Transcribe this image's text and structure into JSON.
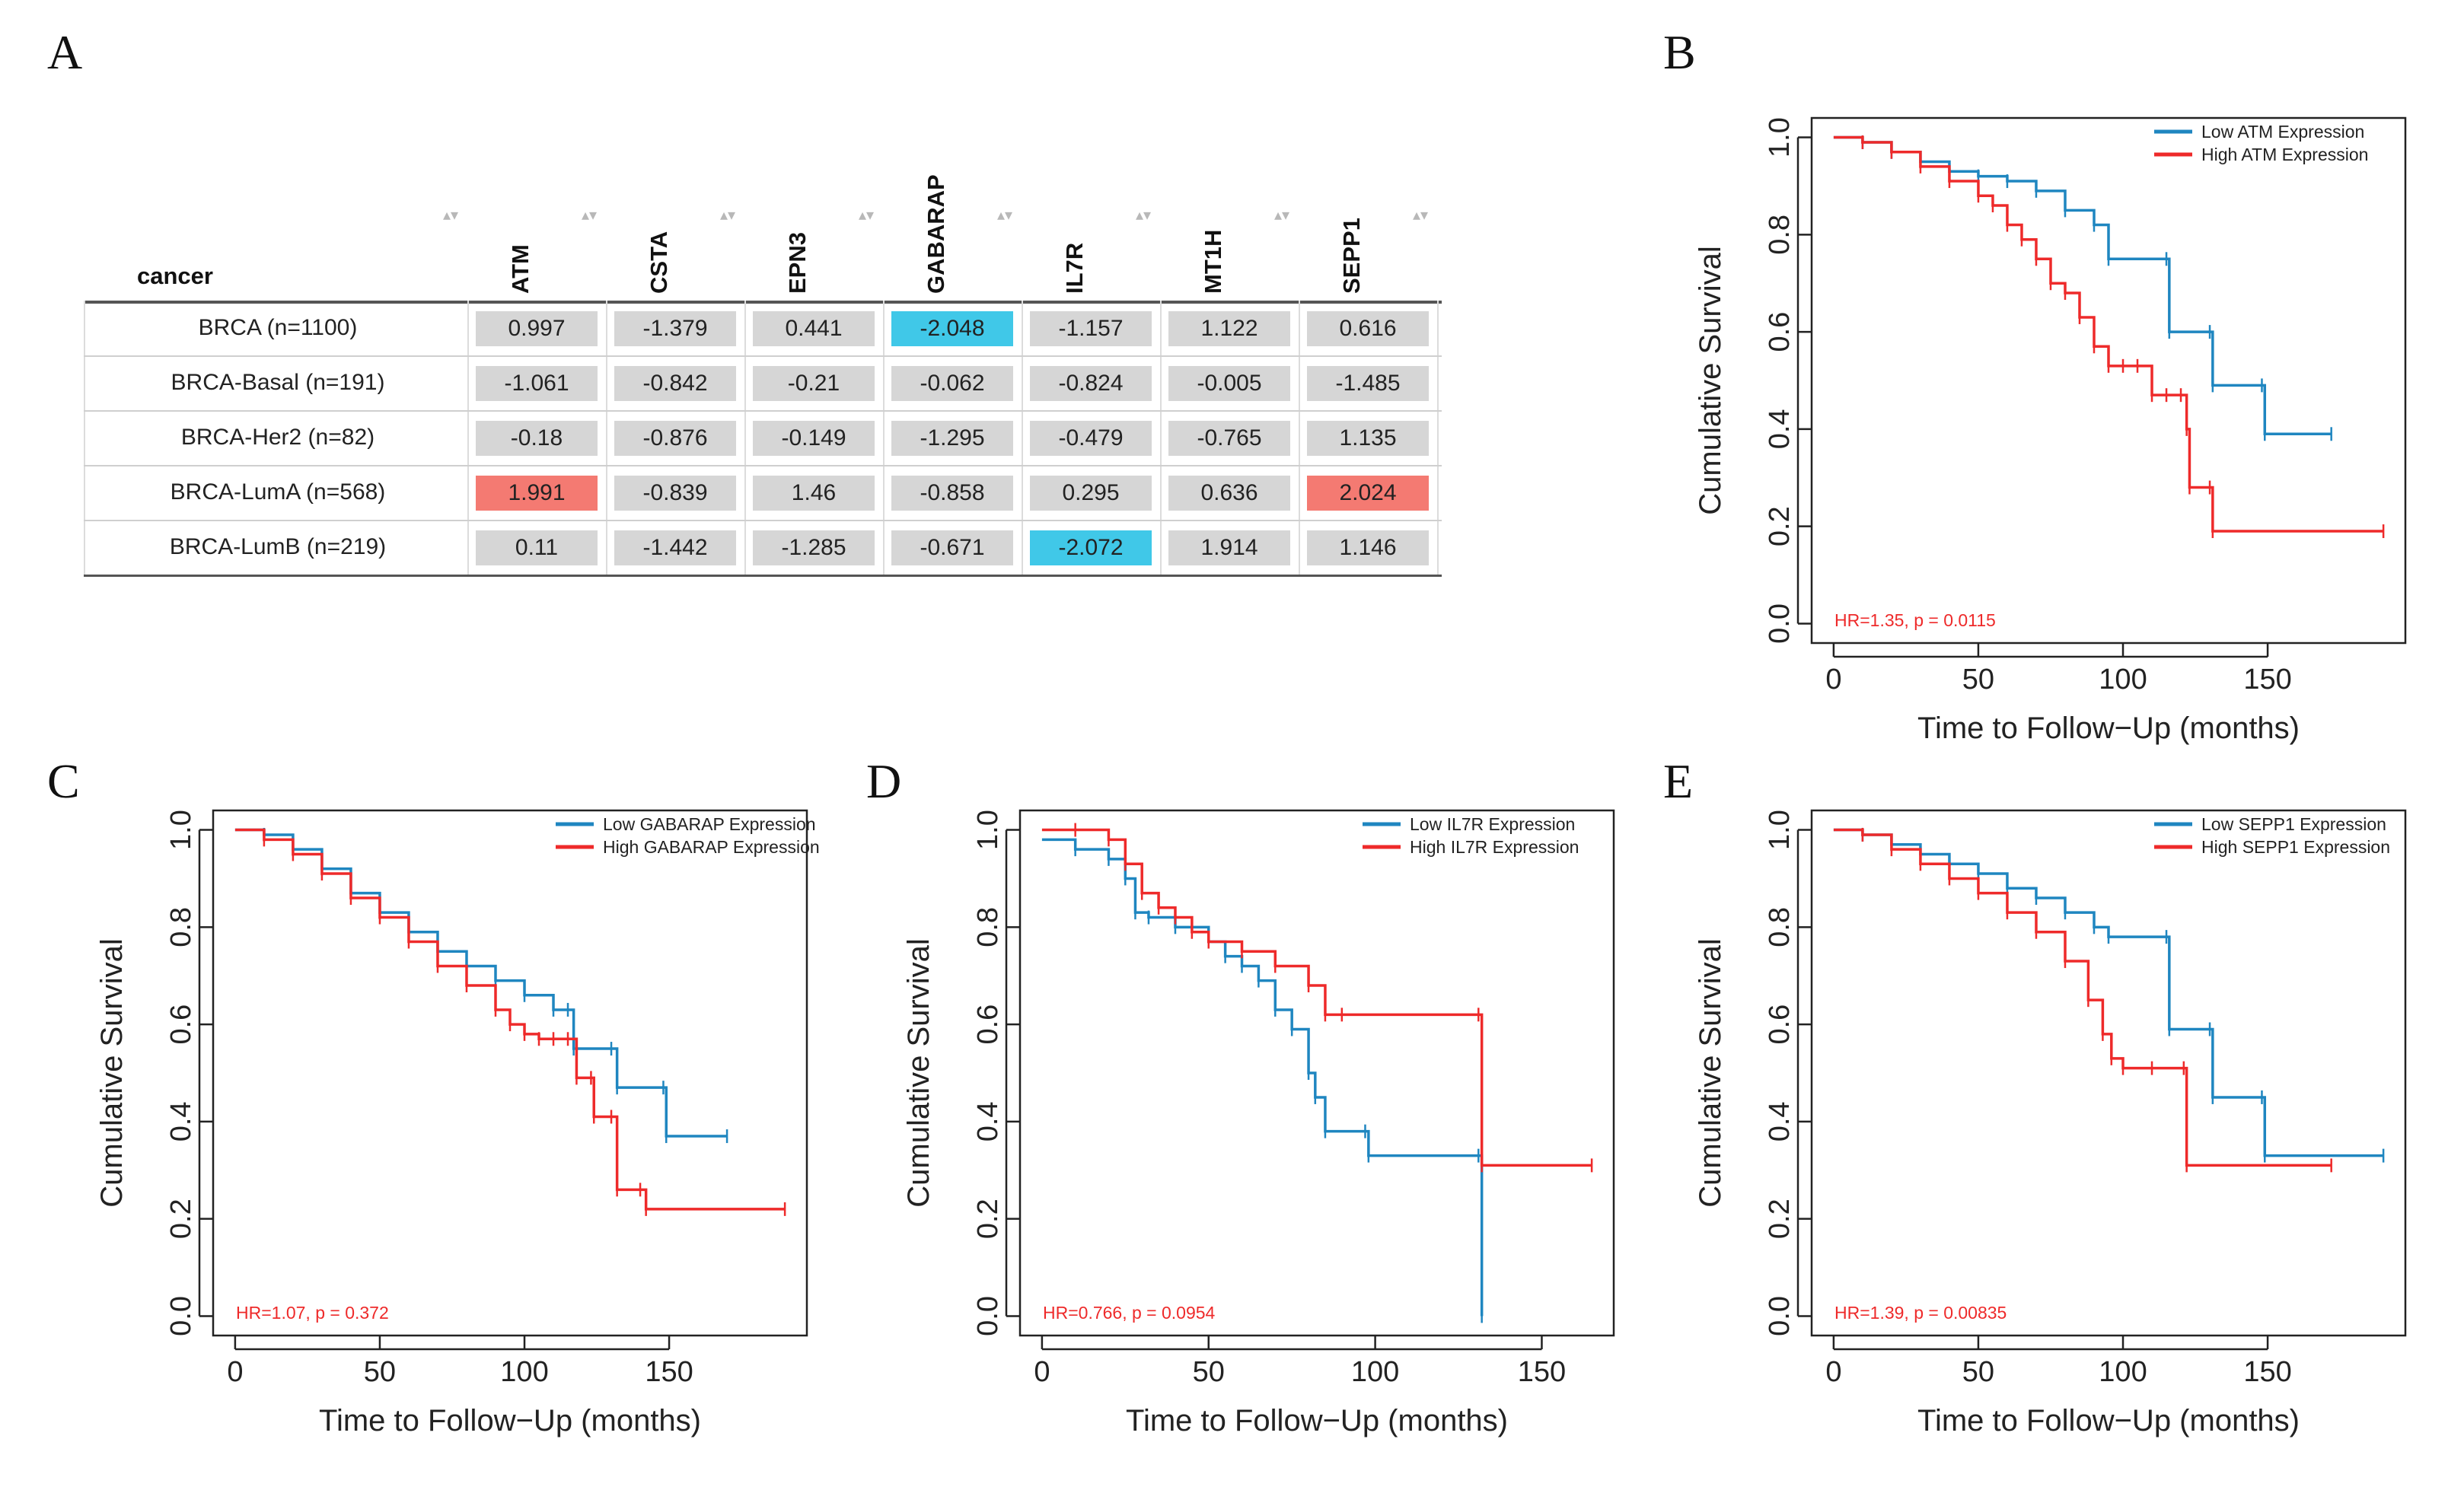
{
  "panel_labels": [
    "A",
    "B",
    "C",
    "D",
    "E"
  ],
  "chart_data": [
    {
      "type": "table",
      "panel": "A",
      "corner_header": "cancer",
      "columns": [
        "ATM",
        "CSTA",
        "EPN3",
        "GABARAP",
        "IL7R",
        "MT1H",
        "SEPP1"
      ],
      "rows": [
        {
          "label": "BRCA (n=1100)",
          "values": [
            "0.997",
            "-1.379",
            "0.441",
            "-2.048",
            "-1.157",
            "1.122",
            "0.616"
          ]
        },
        {
          "label": "BRCA-Basal (n=191)",
          "values": [
            "-1.061",
            "-0.842",
            "-0.21",
            "-0.062",
            "-0.824",
            "-0.005",
            "-1.485"
          ]
        },
        {
          "label": "BRCA-Her2 (n=82)",
          "values": [
            "-0.18",
            "-0.876",
            "-0.149",
            "-1.295",
            "-0.479",
            "-0.765",
            "1.135"
          ]
        },
        {
          "label": "BRCA-LumA (n=568)",
          "values": [
            "1.991",
            "-0.839",
            "1.46",
            "-0.858",
            "0.295",
            "0.636",
            "2.024"
          ]
        },
        {
          "label": "BRCA-LumB (n=219)",
          "values": [
            "0.11",
            "-1.442",
            "-1.285",
            "-0.671",
            "-2.072",
            "1.914",
            "1.146"
          ]
        }
      ],
      "colors": {
        "high": "#f47a72",
        "low": "#40c8e8",
        "neutral": "#d6d6d6"
      },
      "high_threshold": 1.96,
      "low_threshold": -1.96
    },
    {
      "type": "line",
      "panel": "B",
      "xlabel": "Time to Follow−Up (months)",
      "ylabel": "Cumulative Survival",
      "xlim": [
        0,
        190
      ],
      "ylim": [
        0,
        1
      ],
      "xticks": [
        "0",
        "50",
        "100",
        "150"
      ],
      "yticks": [
        "0.0",
        "0.2",
        "0.4",
        "0.6",
        "0.8",
        "1.0"
      ],
      "annotation": "HR=1.35, p = 0.0115",
      "series": [
        {
          "name": "Low ATM Expression",
          "color": "#1f86c0",
          "x": [
            0,
            10,
            20,
            30,
            40,
            50,
            60,
            70,
            80,
            90,
            95,
            115,
            116,
            130,
            131,
            148,
            149,
            172
          ],
          "y": [
            1,
            0.99,
            0.97,
            0.95,
            0.93,
            0.92,
            0.91,
            0.89,
            0.85,
            0.82,
            0.75,
            0.75,
            0.6,
            0.6,
            0.49,
            0.49,
            0.39,
            0.39
          ]
        },
        {
          "name": "High ATM Expression",
          "color": "#ee2a2a",
          "x": [
            0,
            10,
            20,
            30,
            40,
            50,
            55,
            60,
            65,
            70,
            75,
            80,
            85,
            90,
            95,
            100,
            105,
            110,
            115,
            120,
            122,
            123,
            130,
            131,
            190
          ],
          "y": [
            1,
            0.99,
            0.97,
            0.94,
            0.91,
            0.88,
            0.86,
            0.82,
            0.79,
            0.75,
            0.7,
            0.68,
            0.63,
            0.57,
            0.53,
            0.53,
            0.53,
            0.47,
            0.47,
            0.47,
            0.4,
            0.28,
            0.28,
            0.19,
            0.19
          ]
        }
      ]
    },
    {
      "type": "line",
      "panel": "C",
      "xlabel": "Time to Follow−Up (months)",
      "ylabel": "Cumulative Survival",
      "xlim": [
        0,
        190
      ],
      "ylim": [
        0,
        1
      ],
      "xticks": [
        "0",
        "50",
        "100",
        "150"
      ],
      "yticks": [
        "0.0",
        "0.2",
        "0.4",
        "0.6",
        "0.8",
        "1.0"
      ],
      "annotation": "HR=1.07, p = 0.372",
      "series": [
        {
          "name": "Low GABARAP Expression",
          "color": "#1f86c0",
          "x": [
            0,
            10,
            20,
            30,
            40,
            50,
            60,
            70,
            80,
            90,
            100,
            110,
            115,
            117,
            130,
            132,
            148,
            149,
            170
          ],
          "y": [
            1,
            0.99,
            0.96,
            0.92,
            0.87,
            0.83,
            0.79,
            0.75,
            0.72,
            0.69,
            0.66,
            0.63,
            0.63,
            0.55,
            0.55,
            0.47,
            0.47,
            0.37,
            0.37
          ]
        },
        {
          "name": "High GABARAP Expression",
          "color": "#ee2a2a",
          "x": [
            0,
            10,
            20,
            30,
            40,
            50,
            60,
            70,
            80,
            90,
            95,
            100,
            105,
            110,
            115,
            118,
            123,
            124,
            130,
            132,
            140,
            142,
            190
          ],
          "y": [
            1,
            0.98,
            0.95,
            0.91,
            0.86,
            0.82,
            0.77,
            0.72,
            0.68,
            0.63,
            0.6,
            0.58,
            0.57,
            0.57,
            0.57,
            0.49,
            0.49,
            0.41,
            0.41,
            0.26,
            0.26,
            0.22,
            0.22
          ]
        }
      ]
    },
    {
      "type": "line",
      "panel": "D",
      "xlabel": "Time to Follow−Up (months)",
      "ylabel": "Cumulative Survival",
      "xlim": [
        0,
        165
      ],
      "ylim": [
        0,
        1
      ],
      "xticks": [
        "0",
        "50",
        "100",
        "150"
      ],
      "yticks": [
        "0.0",
        "0.2",
        "0.4",
        "0.6",
        "0.8",
        "1.0"
      ],
      "annotation": "HR=0.766, p = 0.0954",
      "series": [
        {
          "name": "Low IL7R Expression",
          "color": "#1f86c0",
          "x": [
            0,
            10,
            20,
            25,
            28,
            32,
            40,
            50,
            55,
            60,
            65,
            70,
            75,
            80,
            82,
            85,
            97,
            98,
            131,
            132
          ],
          "y": [
            0.98,
            0.96,
            0.94,
            0.9,
            0.83,
            0.82,
            0.8,
            0.77,
            0.74,
            0.72,
            0.69,
            0.63,
            0.59,
            0.5,
            0.45,
            0.38,
            0.38,
            0.33,
            0.33,
            0
          ]
        },
        {
          "name": "High IL7R Expression",
          "color": "#ee2a2a",
          "x": [
            0,
            10,
            20,
            25,
            30,
            35,
            40,
            45,
            50,
            60,
            70,
            80,
            85,
            90,
            131,
            132,
            165
          ],
          "y": [
            1,
            1,
            0.98,
            0.93,
            0.87,
            0.84,
            0.82,
            0.79,
            0.77,
            0.75,
            0.72,
            0.68,
            0.62,
            0.62,
            0.62,
            0.31,
            0.31
          ]
        }
      ]
    },
    {
      "type": "line",
      "panel": "E",
      "xlabel": "Time to Follow−Up (months)",
      "ylabel": "Cumulative Survival",
      "xlim": [
        0,
        190
      ],
      "ylim": [
        0,
        1
      ],
      "xticks": [
        "0",
        "50",
        "100",
        "150"
      ],
      "yticks": [
        "0.0",
        "0.2",
        "0.4",
        "0.6",
        "0.8",
        "1.0"
      ],
      "annotation": "HR=1.39, p = 0.00835",
      "series": [
        {
          "name": "Low SEPP1 Expression",
          "color": "#1f86c0",
          "x": [
            0,
            10,
            20,
            30,
            40,
            50,
            60,
            70,
            80,
            90,
            95,
            115,
            116,
            130,
            131,
            148,
            149,
            190
          ],
          "y": [
            1,
            0.99,
            0.97,
            0.95,
            0.93,
            0.91,
            0.88,
            0.86,
            0.83,
            0.8,
            0.78,
            0.78,
            0.59,
            0.59,
            0.45,
            0.45,
            0.33,
            0.33
          ]
        },
        {
          "name": "High SEPP1 Expression",
          "color": "#ee2a2a",
          "x": [
            0,
            10,
            20,
            30,
            40,
            50,
            60,
            70,
            80,
            88,
            93,
            96,
            100,
            110,
            121,
            122,
            172
          ],
          "y": [
            1,
            0.99,
            0.96,
            0.93,
            0.9,
            0.87,
            0.83,
            0.79,
            0.73,
            0.65,
            0.58,
            0.53,
            0.51,
            0.51,
            0.51,
            0.31,
            0.31
          ]
        }
      ]
    }
  ]
}
